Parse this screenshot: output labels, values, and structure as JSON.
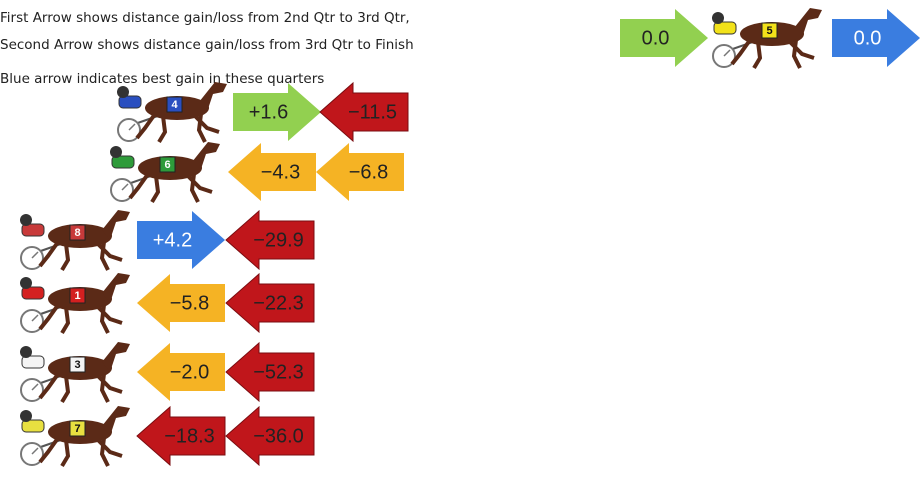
{
  "legend": {
    "lines": [
      "First Arrow shows distance gain/loss from 2nd Qtr to 3rd Qtr,",
      "Second Arrow shows distance gain/loss from 3rd Qtr to Finish",
      "Blue arrow indicates best gain in these quarters"
    ]
  },
  "leader": {
    "saddle": "5",
    "saddle_color": "#f2e21a",
    "arrows": [
      {
        "text": "0.0",
        "color": "#92d050",
        "direction": "right"
      },
      {
        "text": "0.0",
        "color": "#3a7de0",
        "direction": "right"
      }
    ]
  },
  "horses": [
    {
      "saddle": "4",
      "saddle_color": "#2a4fc0",
      "arrows": [
        {
          "text": "+1.6",
          "color": "#92d050",
          "direction": "right"
        },
        {
          "text": "−11.5",
          "color": "#c0161b",
          "direction": "left"
        }
      ]
    },
    {
      "saddle": "6",
      "saddle_color": "#2e9b3a",
      "arrows": [
        {
          "text": "−4.3",
          "color": "#f5b324",
          "direction": "left"
        },
        {
          "text": "−6.8",
          "color": "#f5b324",
          "direction": "left"
        }
      ]
    },
    {
      "saddle": "8",
      "saddle_color": "#c83a3a",
      "arrows": [
        {
          "text": "+4.2",
          "color": "#3a7de0",
          "direction": "right"
        },
        {
          "text": "−29.9",
          "color": "#c0161b",
          "direction": "left"
        }
      ]
    },
    {
      "saddle": "1",
      "saddle_color": "#d42020",
      "arrows": [
        {
          "text": "−5.8",
          "color": "#f5b324",
          "direction": "left"
        },
        {
          "text": "−22.3",
          "color": "#c0161b",
          "direction": "left"
        }
      ]
    },
    {
      "saddle": "3",
      "saddle_color": "#f4f4f4",
      "arrows": [
        {
          "text": "−2.0",
          "color": "#f5b324",
          "direction": "left"
        },
        {
          "text": "−52.3",
          "color": "#c0161b",
          "direction": "left"
        }
      ]
    },
    {
      "saddle": "7",
      "saddle_color": "#e8e040",
      "arrows": [
        {
          "text": "−18.3",
          "color": "#c0161b",
          "direction": "left"
        },
        {
          "text": "−36.0",
          "color": "#c0161b",
          "direction": "left"
        }
      ]
    }
  ]
}
